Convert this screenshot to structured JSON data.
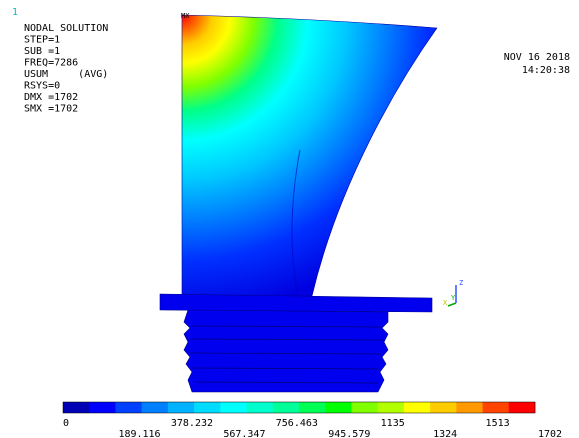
{
  "window_number": "1",
  "info": [
    "NODAL SOLUTION",
    "STEP=1",
    "SUB =1",
    "FREQ=7286",
    "USUM     (AVG)",
    "RSYS=0",
    "DMX =1702",
    "SMX =1702"
  ],
  "max_marker": "MX",
  "date": "NOV 16 2018",
  "time": "14:20:38",
  "triad": {
    "z": "Z",
    "y": "Y",
    "x": "X"
  },
  "legend": {
    "labels": [
      0,
      189.116,
      378.232,
      567.347,
      756.463,
      945.579,
      1135,
      1324,
      1513,
      1702
    ],
    "colors": [
      "#0000b4",
      "#0000ff",
      "#0040ff",
      "#0080ff",
      "#00b2ff",
      "#00dcff",
      "#00ffff",
      "#00ffcc",
      "#00ff99",
      "#00ff55",
      "#00ff00",
      "#80ff00",
      "#b2ff00",
      "#ffff00",
      "#ffcc00",
      "#ff9900",
      "#ff4400",
      "#ff0000"
    ]
  }
}
